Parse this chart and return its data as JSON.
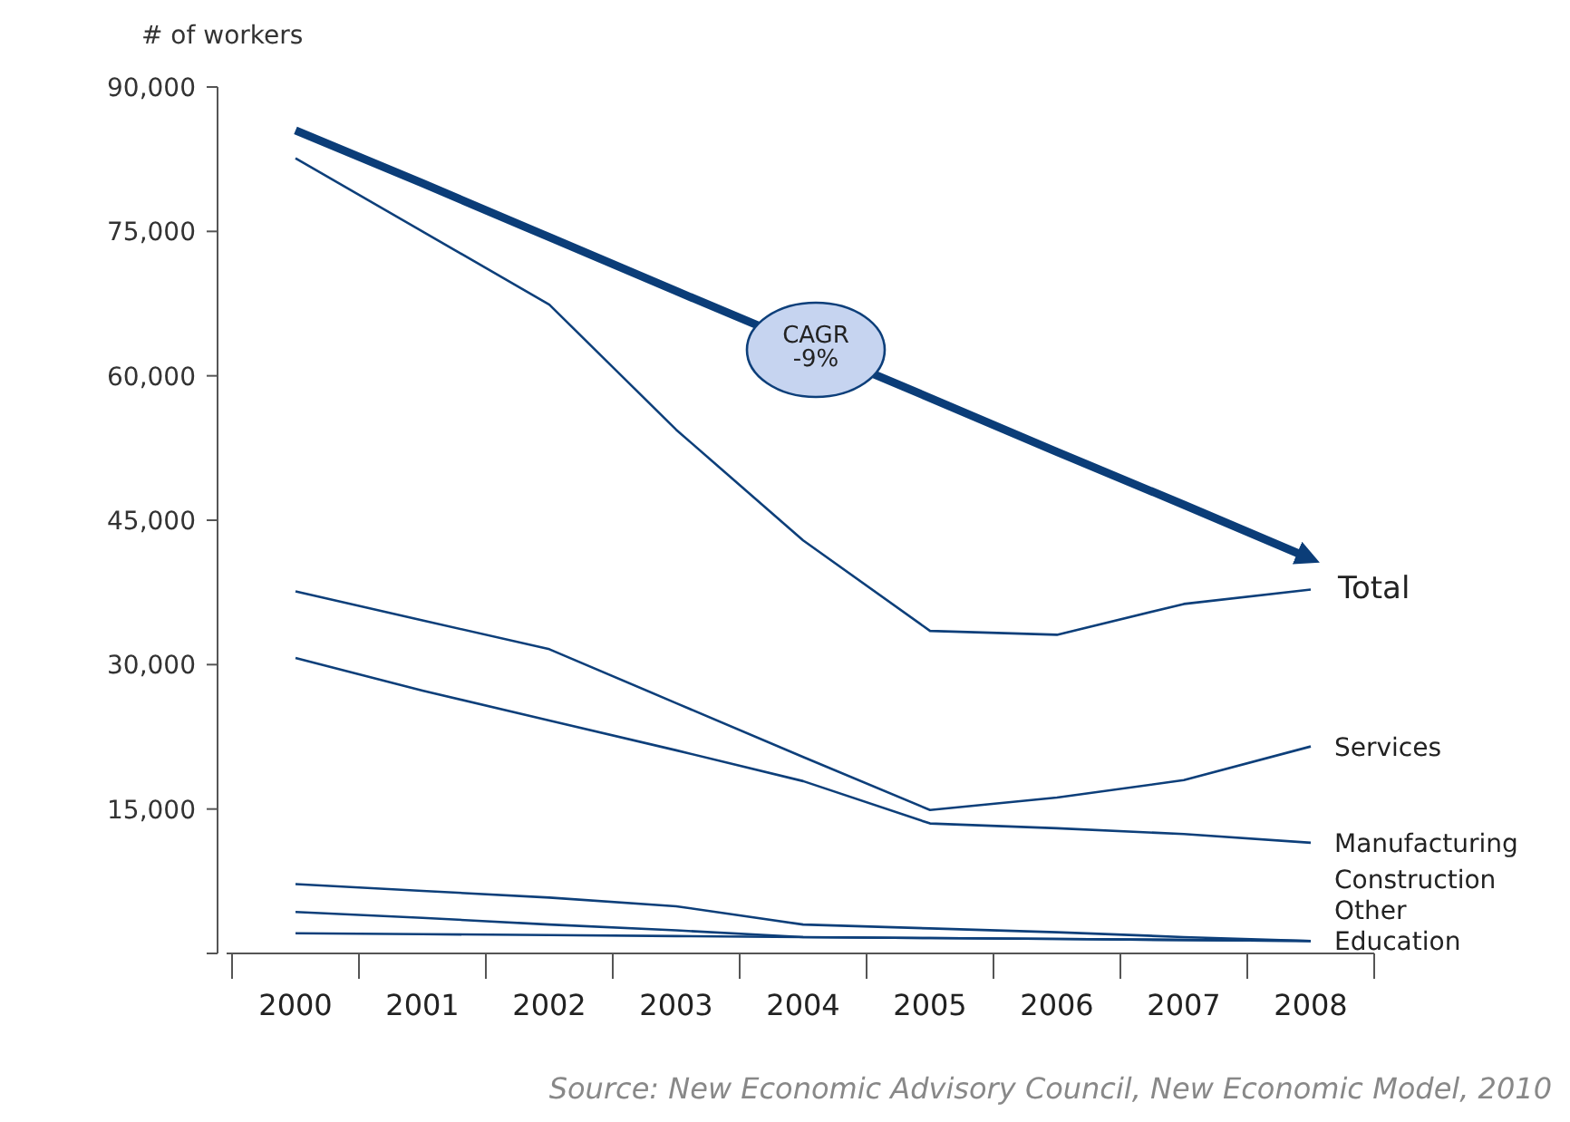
{
  "chart_data": {
    "type": "line",
    "ylabel": "# of workers",
    "categories": [
      "2000",
      "2001",
      "2002",
      "2003",
      "2004",
      "2005",
      "2006",
      "2007",
      "2008"
    ],
    "ylim": [
      0,
      90000
    ],
    "yticks": [
      {
        "value": 0,
        "label": null
      },
      {
        "value": 15000,
        "label": "15,000"
      },
      {
        "value": 30000,
        "label": "30,000"
      },
      {
        "value": 45000,
        "label": "45,000"
      },
      {
        "value": 60000,
        "label": "60,000"
      },
      {
        "value": 75000,
        "label": "75,000"
      },
      {
        "value": 90000,
        "label": "90,000"
      }
    ],
    "grid": false,
    "marker": "none",
    "line_style": "solid",
    "series": [
      {
        "name": "Total",
        "color": "#0d3f7a",
        "values": [
          82600,
          75000,
          67400,
          54400,
          42900,
          33500,
          33100,
          36300,
          37800
        ]
      },
      {
        "name": "Services",
        "color": "#0d3f7a",
        "values": [
          37600,
          34600,
          31600,
          26000,
          20400,
          14900,
          16200,
          18000,
          21500
        ]
      },
      {
        "name": "Manufacturing",
        "color": "#0d3f7a",
        "values": [
          30700,
          27300,
          24200,
          21100,
          17900,
          13500,
          13000,
          12400,
          11500
        ]
      },
      {
        "name": "Construction",
        "color": "#0d3f7a",
        "values": [
          7200,
          6500,
          5800,
          4900,
          3000,
          2600,
          2200,
          1700,
          1300
        ]
      },
      {
        "name": "Other",
        "color": "#0d3f7a",
        "values": [
          4300,
          3700,
          3000,
          2400,
          1700,
          1600,
          1500,
          1400,
          1300
        ]
      },
      {
        "name": "Education",
        "color": "#0d3f7a",
        "values": [
          2100,
          2000,
          1900,
          1800,
          1700,
          1600,
          1500,
          1400,
          1300
        ]
      },
      {
        "color": "#0b3d78",
        "values": [
          85500,
          80000,
          74400,
          68800,
          null,
          57700,
          52100,
          46600,
          41000
        ]
      }
    ],
    "annotations": [
      "CAGR\n-9%",
      "Source: New Economic Advisory Council, New Economic Model, 2010"
    ]
  }
}
